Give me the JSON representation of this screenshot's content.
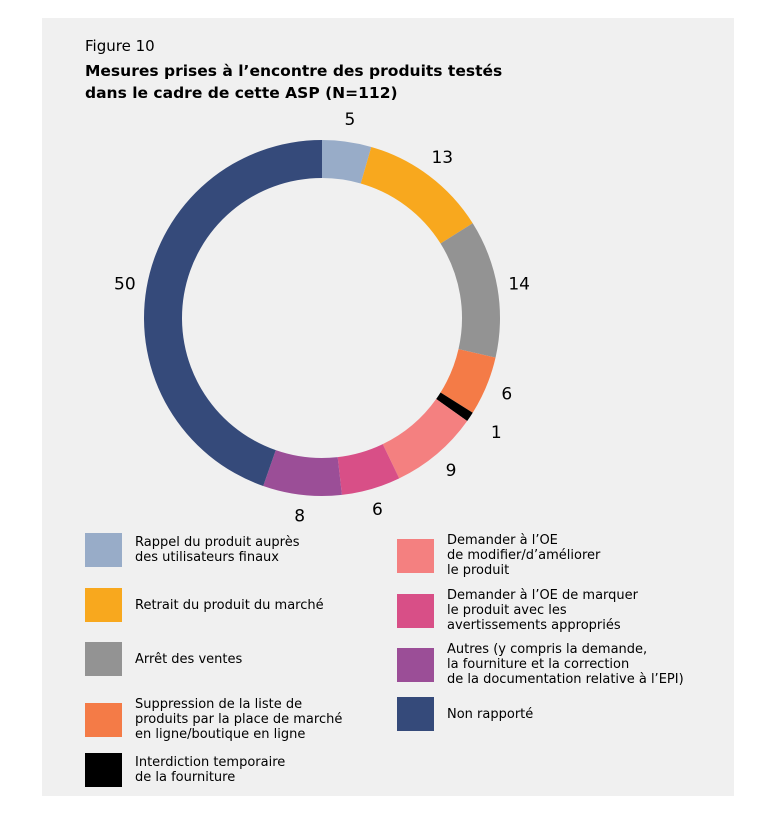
{
  "figure": {
    "label": "Figure 10",
    "title": "Mesures prises à l’encontre des produits testés\ndans le cadre de cette ASP (N=112)"
  },
  "chart_data": {
    "type": "pie",
    "donut": true,
    "title": "Mesures prises à l’encontre des produits testés dans le cadre de cette ASP (N=112)",
    "total": 112,
    "slices": [
      {
        "label": "Rappel du produit auprès des utilisateurs finaux",
        "value": 5,
        "display": "5",
        "color": "#98acc8"
      },
      {
        "label": "Retrait du produit du marché",
        "value": 13,
        "display": "13",
        "color": "#f8a81e"
      },
      {
        "label": "Arrêt des ventes",
        "value": 14,
        "display": "14",
        "color": "#939393"
      },
      {
        "label": "Suppression de la liste de produits par la place de marché en ligne/boutique en ligne",
        "value": 6,
        "display": "6",
        "color": "#f47b47"
      },
      {
        "label": "Interdiction temporaire de la fourniture",
        "value": 1,
        "display": "1",
        "color": "#000000"
      },
      {
        "label": "Demander à l’OE de modifier/d’améliorer le produit",
        "value": 9,
        "display": "9",
        "color": "#f48080"
      },
      {
        "label": "Demander à l’OE de marquer le produit avec les avertissements appropriés",
        "value": 6,
        "display": "6",
        "color": "#d84f87"
      },
      {
        "label": "Autres (y compris la demande, la fourniture et la correction de la documentation relative à l’EPI)",
        "value": 8,
        "display": "8",
        "color": "#9b4e97"
      },
      {
        "label": "Non rapporté",
        "value": 50,
        "display": "50",
        "color": "#354a7a"
      }
    ]
  },
  "legend": [
    {
      "text": "Rappel du produit auprès\ndes utilisateurs finaux",
      "color": "#98acc8"
    },
    {
      "text": "Retrait du produit du marché",
      "color": "#f8a81e"
    },
    {
      "text": "Arrêt des ventes",
      "color": "#939393"
    },
    {
      "text": "Suppression de la liste de\nproduits par la place de marché\nen ligne/boutique en ligne",
      "color": "#f47b47"
    },
    {
      "text": "Interdiction temporaire\nde la fourniture",
      "color": "#000000"
    },
    {
      "text": "Demander à l’OE\nde modifier/d’améliorer\nle produit",
      "color": "#f48080"
    },
    {
      "text": "Demander à l’OE de marquer\nle produit avec les\navertissements appropriés",
      "color": "#d84f87"
    },
    {
      "text": "Autres (y compris la demande,\nla fourniture et la correction\nde la documentation relative à l’EPI)",
      "color": "#9b4e97"
    },
    {
      "text": "Non rapporté",
      "color": "#354a7a"
    }
  ]
}
